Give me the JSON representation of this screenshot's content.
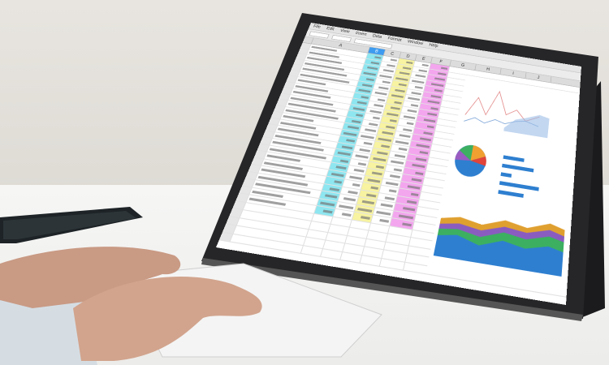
{
  "spreadsheet": {
    "menu": [
      "File",
      "Edit",
      "View",
      "Insert",
      "Data",
      "Format",
      "Window",
      "Help"
    ],
    "columns": [
      "A",
      "B",
      "C",
      "D",
      "E",
      "F",
      "G",
      "H",
      "I",
      "J"
    ],
    "selected_column": "B",
    "column_colors": {
      "B": "#8ee6f0",
      "D": "#f7f3a0",
      "F": "#f3a6ee"
    },
    "accent": "#3d9bf0"
  },
  "scene": {
    "objects": [
      "tablet-on-stand",
      "spreadsheet-app",
      "smartphone",
      "wireless-keyboard",
      "hands"
    ]
  }
}
